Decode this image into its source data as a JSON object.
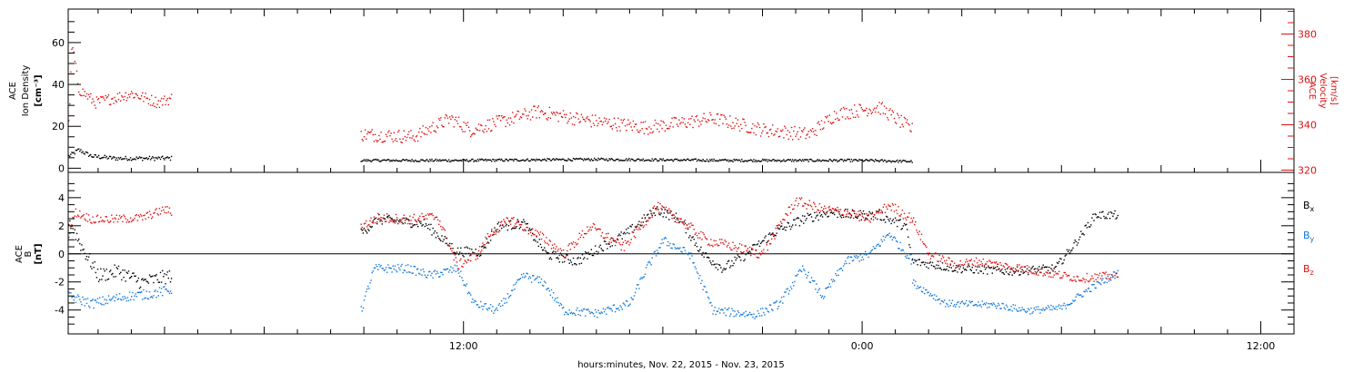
{
  "x_axis": {
    "title": "hours:minutes, Nov. 22, 2015 - Nov. 23, 2015",
    "tick_labels": [
      "12:00",
      "0:00",
      "12:00"
    ],
    "tick_hours": [
      12,
      24,
      36
    ],
    "range_hours": [
      0.1,
      37.0
    ]
  },
  "colors": {
    "black": "#000000",
    "red": "#dd1111",
    "blue": "#1177dd",
    "frame": "#000000"
  },
  "chart_data": [
    {
      "type": "scatter",
      "panel": "top",
      "ylabel_left": [
        "ACE",
        "Ion Density",
        "[cm⁻³]"
      ],
      "ylabel_right": [
        "ACE",
        "Velocity",
        "[km/s]"
      ],
      "ylim_left": [
        -2,
        76
      ],
      "ylim_right": [
        319,
        391
      ],
      "yticks_left": [
        "0",
        "20",
        "40",
        "60"
      ],
      "yticks_right": [
        "320",
        "340",
        "360",
        "380"
      ],
      "series": [
        {
          "axis": "left",
          "color": "#000000",
          "segments": [
            {
              "x_range": [
                0.1,
                3.2
              ],
              "keyframes": [
                [
                  0.1,
                  6
                ],
                [
                  0.4,
                  9
                ],
                [
                  0.8,
                  6
                ],
                [
                  1.5,
                  5
                ],
                [
                  2.5,
                  5
                ],
                [
                  3.2,
                  5
                ]
              ],
              "noise": 1.0
            },
            {
              "x_range": [
                8.9,
                25.5
              ],
              "keyframes": [
                [
                  8.9,
                  4
                ],
                [
                  12,
                  4
                ],
                [
                  16,
                  4.5
                ],
                [
                  20,
                  4
                ],
                [
                  24,
                  4
                ],
                [
                  25.5,
                  3.5
                ]
              ],
              "noise": 0.6
            }
          ]
        },
        {
          "axis": "right",
          "color": "#dd1111",
          "segments": [
            {
              "x_range": [
                0.1,
                3.2
              ],
              "keyframes": [
                [
                  0.1,
                  340
                ],
                [
                  0.2,
                  376
                ],
                [
                  0.4,
                  356
                ],
                [
                  0.9,
                  350
                ],
                [
                  2.0,
                  354
                ],
                [
                  2.8,
                  350
                ],
                [
                  3.2,
                  352
                ]
              ],
              "noise": 2.5
            },
            {
              "x_range": [
                8.9,
                25.5
              ],
              "keyframes": [
                [
                  8.9,
                  336
                ],
                [
                  10.5,
                  335
                ],
                [
                  11.6,
                  343
                ],
                [
                  12.2,
                  338
                ],
                [
                  14.2,
                  346
                ],
                [
                  15.8,
                  342
                ],
                [
                  17.5,
                  339
                ],
                [
                  19.5,
                  343
                ],
                [
                  21,
                  338
                ],
                [
                  22.4,
                  336
                ],
                [
                  23.2,
                  345
                ],
                [
                  24.5,
                  348
                ],
                [
                  25.5,
                  338
                ]
              ],
              "noise": 3.0
            }
          ]
        }
      ]
    },
    {
      "type": "scatter",
      "panel": "bottom",
      "ylabel_left": [
        "ACE",
        "B",
        "[nT]"
      ],
      "ylim": [
        -5.7,
        5.8
      ],
      "yticks": [
        "-4",
        "-2",
        "0",
        "2",
        "4"
      ],
      "zero_line": true,
      "legend": [
        "Bx",
        "By",
        "Bz"
      ],
      "legend_placement": "right",
      "series": [
        {
          "name": "Bx",
          "color": "#000000",
          "segments": [
            {
              "x_range": [
                0.1,
                3.2
              ],
              "keyframes": [
                [
                  0.1,
                  2.5
                ],
                [
                  0.5,
                  0.5
                ],
                [
                  1.0,
                  -1.5
                ],
                [
                  1.6,
                  -1.2
                ],
                [
                  2.3,
                  -2.0
                ],
                [
                  3.2,
                  -1.5
                ]
              ],
              "noise": 0.5
            },
            {
              "x_range": [
                8.9,
                25.5
              ],
              "keyframes": [
                [
                  8.9,
                  1.5
                ],
                [
                  9.4,
                  2.5
                ],
                [
                  10.8,
                  2.2
                ],
                [
                  11.8,
                  0.2
                ],
                [
                  12.5,
                  0.2
                ],
                [
                  13.0,
                  2.0
                ],
                [
                  13.8,
                  2.2
                ],
                [
                  14.5,
                  0
                ],
                [
                  15.4,
                  -0.5
                ],
                [
                  16.1,
                  0.5
                ],
                [
                  16.9,
                  1.5
                ],
                [
                  17.8,
                  3.2
                ],
                [
                  18.5,
                  2.5
                ],
                [
                  19.2,
                  0
                ],
                [
                  19.8,
                  -1.0
                ],
                [
                  20.5,
                  0
                ],
                [
                  21.3,
                  1.5
                ],
                [
                  22.2,
                  2.5
                ],
                [
                  23.0,
                  3.0
                ],
                [
                  23.8,
                  2.8
                ],
                [
                  24.5,
                  2.8
                ],
                [
                  25.3,
                  2.0
                ],
                [
                  25.5,
                  -0.5
                ]
              ],
              "noise": 0.35
            },
            {
              "x_range": [
                25.5,
                31.7
              ],
              "keyframes": [
                [
                  25.5,
                  -0.5
                ],
                [
                  26.8,
                  -1.0
                ],
                [
                  28.5,
                  -1.2
                ],
                [
                  29.8,
                  -1.0
                ],
                [
                  30.4,
                  0.8
                ],
                [
                  31.0,
                  2.8
                ],
                [
                  31.7,
                  2.8
                ]
              ],
              "noise": 0.3
            }
          ]
        },
        {
          "name": "By",
          "color": "#1177dd",
          "segments": [
            {
              "x_range": [
                0.1,
                3.2
              ],
              "keyframes": [
                [
                  0.1,
                  -3.0
                ],
                [
                  0.8,
                  -3.5
                ],
                [
                  1.8,
                  -3.0
                ],
                [
                  2.6,
                  -2.8
                ],
                [
                  3.2,
                  -2.5
                ]
              ],
              "noise": 0.35
            },
            {
              "x_range": [
                8.9,
                25.5
              ],
              "keyframes": [
                [
                  8.9,
                  -4.0
                ],
                [
                  9.3,
                  -1.0
                ],
                [
                  10.3,
                  -1.0
                ],
                [
                  11.0,
                  -1.5
                ],
                [
                  11.8,
                  -1.0
                ],
                [
                  12.3,
                  -3.5
                ],
                [
                  13.0,
                  -4.0
                ],
                [
                  13.8,
                  -1.5
                ],
                [
                  14.4,
                  -2.0
                ],
                [
                  15.0,
                  -4.0
                ],
                [
                  16.0,
                  -4.2
                ],
                [
                  17.0,
                  -3.5
                ],
                [
                  17.5,
                  -1.0
                ],
                [
                  18.0,
                  1.0
                ],
                [
                  18.8,
                  0
                ],
                [
                  19.5,
                  -4.0
                ],
                [
                  20.8,
                  -4.3
                ],
                [
                  21.5,
                  -3.5
                ],
                [
                  22.2,
                  -1.0
                ],
                [
                  22.8,
                  -3.0
                ],
                [
                  23.5,
                  -0.5
                ],
                [
                  24.2,
                  0
                ],
                [
                  24.8,
                  1.5
                ],
                [
                  25.5,
                  -0.5
                ]
              ],
              "noise": 0.3
            },
            {
              "x_range": [
                25.5,
                31.7
              ],
              "keyframes": [
                [
                  25.5,
                  -2.0
                ],
                [
                  26.5,
                  -3.5
                ],
                [
                  28.0,
                  -3.6
                ],
                [
                  29.0,
                  -4.0
                ],
                [
                  30.0,
                  -3.8
                ],
                [
                  30.8,
                  -2.5
                ],
                [
                  31.7,
                  -1.3
                ]
              ],
              "noise": 0.25
            }
          ]
        },
        {
          "name": "Bz",
          "color": "#dd1111",
          "segments": [
            {
              "x_range": [
                0.1,
                3.2
              ],
              "keyframes": [
                [
                  0.1,
                  1.5
                ],
                [
                  0.3,
                  3.0
                ],
                [
                  0.8,
                  2.5
                ],
                [
                  1.5,
                  2.5
                ],
                [
                  2.3,
                  2.6
                ],
                [
                  3.0,
                  3.2
                ],
                [
                  3.2,
                  3.0
                ]
              ],
              "noise": 0.3
            },
            {
              "x_range": [
                8.9,
                25.5
              ],
              "keyframes": [
                [
                  8.9,
                  2.0
                ],
                [
                  9.4,
                  2.6
                ],
                [
                  10.4,
                  2.5
                ],
                [
                  11.2,
                  2.7
                ],
                [
                  11.8,
                  -0.8
                ],
                [
                  12.4,
                  0
                ],
                [
                  12.8,
                  1.5
                ],
                [
                  13.4,
                  2.5
                ],
                [
                  14.5,
                  1.0
                ],
                [
                  15.0,
                  0
                ],
                [
                  15.8,
                  2.0
                ],
                [
                  16.8,
                  0.5
                ],
                [
                  17.8,
                  3.4
                ],
                [
                  18.5,
                  2.5
                ],
                [
                  19.3,
                  1.0
                ],
                [
                  20.2,
                  0.5
                ],
                [
                  21.0,
                  0
                ],
                [
                  21.6,
                  2.5
                ],
                [
                  22.0,
                  3.8
                ],
                [
                  22.8,
                  3.2
                ],
                [
                  23.5,
                  3.0
                ],
                [
                  24.2,
                  2.5
                ],
                [
                  24.8,
                  3.5
                ],
                [
                  25.5,
                  2.5
                ]
              ],
              "noise": 0.35
            },
            {
              "x_range": [
                25.5,
                31.7
              ],
              "keyframes": [
                [
                  25.5,
                  2.5
                ],
                [
                  26.0,
                  0
                ],
                [
                  26.8,
                  -0.7
                ],
                [
                  27.5,
                  -0.5
                ],
                [
                  28.2,
                  -0.8
                ],
                [
                  28.8,
                  -1.0
                ],
                [
                  29.5,
                  -1.3
                ],
                [
                  30.5,
                  -1.7
                ],
                [
                  31.7,
                  -1.5
                ]
              ],
              "noise": 0.3
            }
          ]
        }
      ]
    }
  ]
}
